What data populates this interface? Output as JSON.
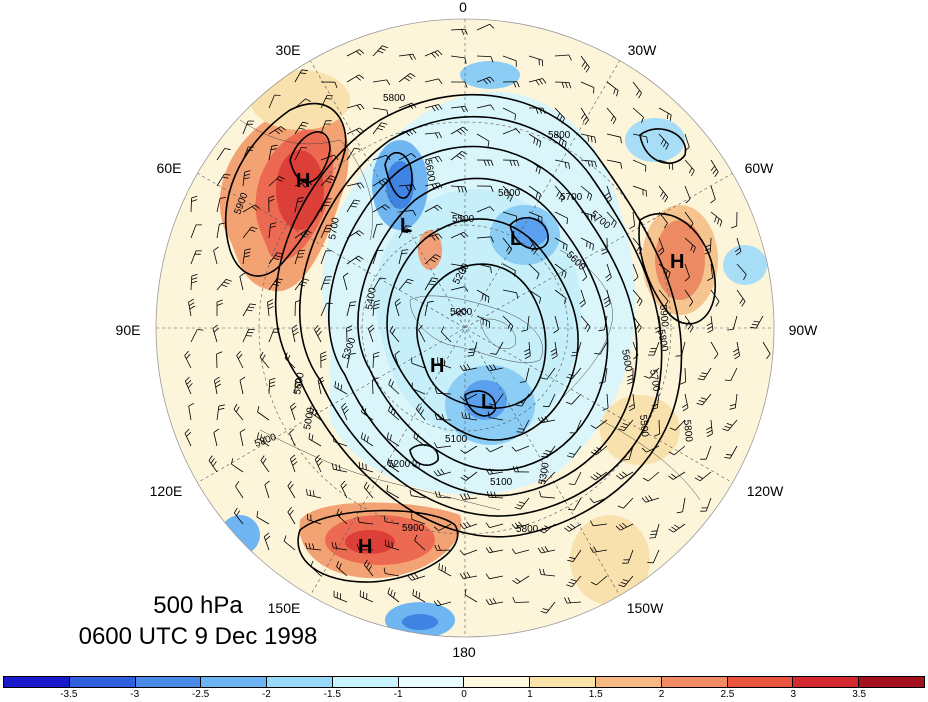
{
  "map": {
    "projection": "north-polar-stereographic",
    "field": "500 hPa geopotential height anomaly with contours and wind barbs",
    "longitude_labels": [
      "0",
      "30W",
      "60W",
      "90W",
      "120W",
      "150W",
      "180",
      "150E",
      "120E",
      "90E",
      "60E",
      "30E"
    ],
    "contour_labels": [
      "5800",
      "5800",
      "5900",
      "5600",
      "5700",
      "5500",
      "5400",
      "5600",
      "5800",
      "5700",
      "5000",
      "5300",
      "5600",
      "5200",
      "5100",
      "5100",
      "5200",
      "5000",
      "5800",
      "5900",
      "5800",
      "5600",
      "5800",
      "5700",
      "5600",
      "5500",
      "5300",
      "5900",
      "5700"
    ],
    "pressure_centers": [
      "H",
      "L",
      "H",
      "L",
      "H",
      "L",
      "H"
    ],
    "colors": {
      "neg_strong": "#1f1fdc",
      "neg": "#3f7fe6",
      "neg_mid": "#5aa0f0",
      "neg_light": "#8fd0f7",
      "neg_pale": "#c4f0fb",
      "neg_faint": "#e6fafd",
      "pos_faint": "#fdf6dc",
      "pos_pale": "#f9dfa1",
      "pos_light": "#f5a87a",
      "pos": "#ee6b55",
      "pos_strong": "#d6302f",
      "pos_deep": "#a8121f"
    }
  },
  "title": {
    "line1": "500 hPa",
    "line2": "0600 UTC 9 Dec 1998"
  },
  "colorbar": {
    "colors": [
      "#1a1acc",
      "#2f5fdc",
      "#4a8be8",
      "#6cb3f2",
      "#98d8f8",
      "#c8f2fc",
      "#e9fbfe",
      "#fdf8df",
      "#fae3a8",
      "#f6b983",
      "#f28a64",
      "#ea5540",
      "#d22a2e",
      "#a5101e"
    ],
    "tick_labels": [
      "-3.5",
      "-3",
      "-2.5",
      "-2",
      "-1.5",
      "-1",
      "0",
      "1",
      "1.5",
      "2",
      "2.5",
      "3",
      "3.5"
    ]
  }
}
